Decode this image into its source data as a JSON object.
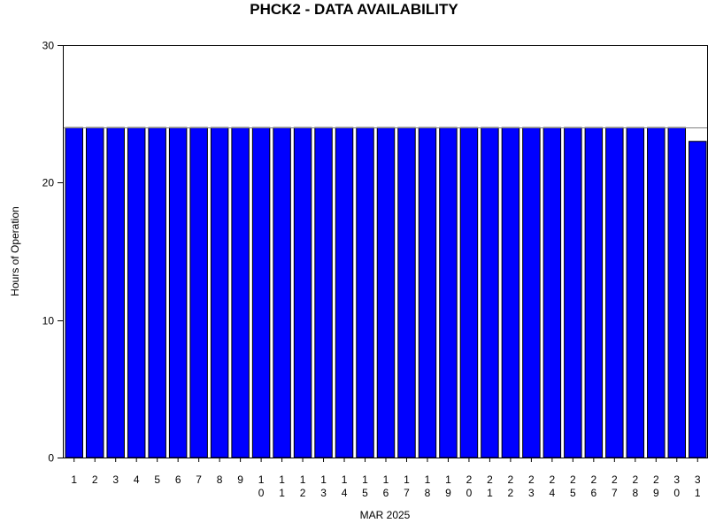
{
  "chart_data": {
    "type": "bar",
    "title": "PHCK2 - DATA AVAILABILITY",
    "xlabel": "MAR 2025",
    "ylabel": "Hours of Operation",
    "categories": [
      "1",
      "2",
      "3",
      "4",
      "5",
      "6",
      "7",
      "8",
      "9",
      "10",
      "11",
      "12",
      "13",
      "14",
      "15",
      "16",
      "17",
      "18",
      "19",
      "20",
      "21",
      "22",
      "23",
      "24",
      "25",
      "26",
      "27",
      "28",
      "29",
      "30",
      "31"
    ],
    "values": [
      24,
      24,
      24,
      24,
      24,
      24,
      24,
      24,
      24,
      24,
      24,
      24,
      24,
      24,
      24,
      24,
      24,
      24,
      24,
      24,
      24,
      24,
      24,
      24,
      24,
      24,
      24,
      24,
      24,
      24,
      23
    ],
    "ylim": [
      0,
      30
    ],
    "yticks": [
      0,
      10,
      20,
      30
    ],
    "reference_line": 24,
    "bar_color": "#0000ff",
    "grid": false
  }
}
